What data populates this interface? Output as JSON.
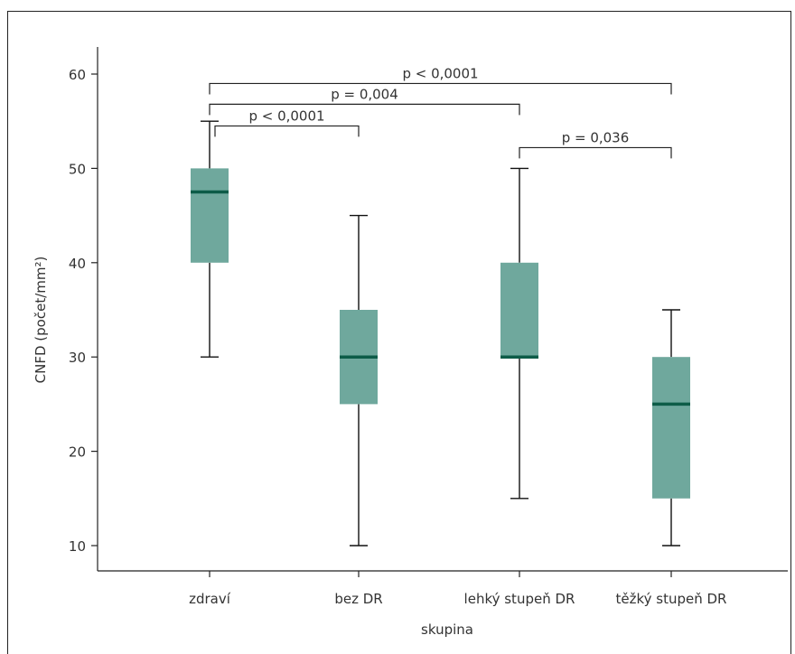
{
  "chart_data": {
    "type": "box",
    "xlabel": "skupina",
    "ylabel": "CNFD (počet/mm²)",
    "ylim": [
      8,
      64
    ],
    "yticks": [
      10,
      20,
      30,
      40,
      50,
      60
    ],
    "grid": false,
    "box_color": "#6fa89d",
    "median_color": "#0d5c48",
    "categories": [
      "zdraví",
      "bez DR",
      "lehký stupeň DR",
      "těžký stupeň DR"
    ],
    "boxes": [
      {
        "category": "zdraví",
        "min": 30,
        "q1": 40,
        "median": 47.5,
        "q3": 50,
        "max": 55
      },
      {
        "category": "bez DR",
        "min": 10,
        "q1": 25,
        "median": 30,
        "q3": 35,
        "max": 45
      },
      {
        "category": "lehký stupeň DR",
        "min": 15,
        "q1": 30,
        "median": 30,
        "q3": 40,
        "max": 50
      },
      {
        "category": "těžký stupeň DR",
        "min": 10,
        "q1": 15,
        "median": 25,
        "q3": 30,
        "max": 35
      }
    ],
    "significance": [
      {
        "from": 0,
        "to": 3,
        "label": "p < 0,0001",
        "y": 59
      },
      {
        "from": 0,
        "to": 2,
        "label": "p = 0,004",
        "y": 56.8
      },
      {
        "from": 0,
        "to": 1,
        "label": "p < 0,0001",
        "y": 54.5
      },
      {
        "from": 2,
        "to": 3,
        "label": "p = 0,036",
        "y": 52.2
      }
    ]
  }
}
